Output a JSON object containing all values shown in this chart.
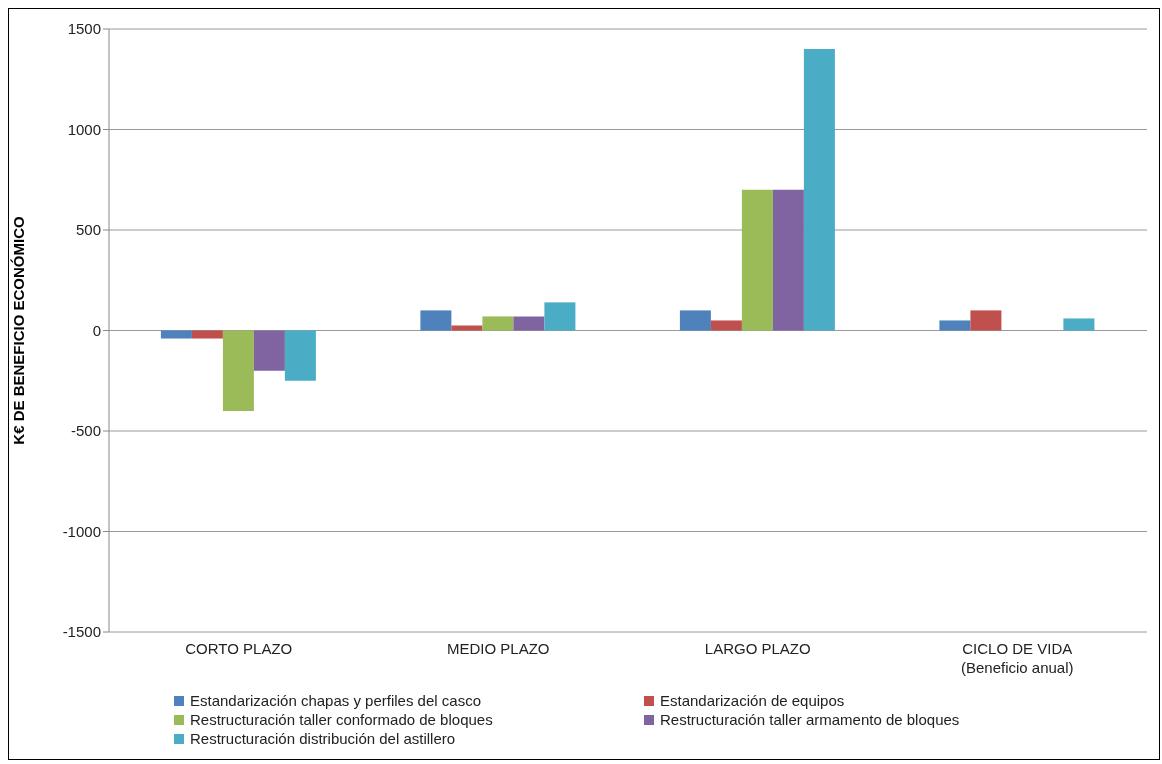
{
  "chart_data": {
    "type": "bar",
    "ylabel": "K€ DE BENEFICIO ECONÓMICO",
    "categories": [
      "CORTO PLAZO",
      "MEDIO PLAZO",
      "LARGO PLAZO",
      "CICLO DE VIDA\n(Beneficio anual)"
    ],
    "series": [
      {
        "name": "Estandarización chapas y perfiles del casco",
        "color": "#4f81bd",
        "values": [
          -40,
          100,
          100,
          50
        ]
      },
      {
        "name": "Estandarización de equipos",
        "color": "#c0504d",
        "values": [
          -40,
          25,
          50,
          100
        ]
      },
      {
        "name": "Restructuración taller conformado de bloques",
        "color": "#9bbb59",
        "values": [
          -400,
          70,
          700,
          null
        ]
      },
      {
        "name": "Restructuración taller armamento de bloques",
        "color": "#8064a2",
        "values": [
          -200,
          70,
          700,
          null
        ]
      },
      {
        "name": "Restructuración distribución del astillero",
        "color": "#4bacc6",
        "values": [
          -250,
          140,
          1400,
          60
        ]
      }
    ],
    "ylim": [
      -1500,
      1500
    ],
    "yticks": [
      -1500,
      -1000,
      -500,
      0,
      500,
      1000,
      1500
    ],
    "grid": "y",
    "legend": "bottom"
  }
}
